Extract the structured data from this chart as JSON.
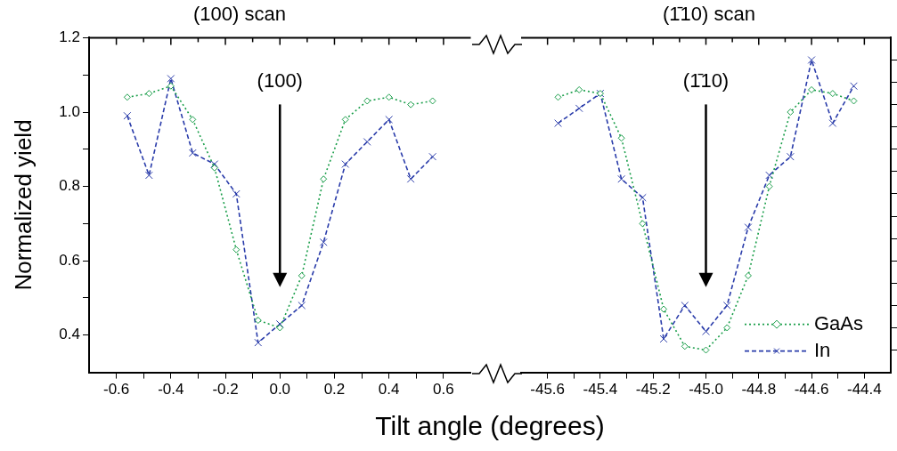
{
  "chart_data": [
    {
      "type": "line",
      "title": "(100) scan",
      "xlabel": "Tilt angle (degrees)",
      "ylabel": "Normalized yield",
      "x": [
        -0.56,
        -0.48,
        -0.4,
        -0.32,
        -0.24,
        -0.16,
        -0.08,
        0,
        0.08,
        0.16,
        0.24,
        0.32,
        0.4,
        0.48,
        0.56
      ],
      "xlim": [
        -0.7,
        0.7
      ],
      "xticks": [
        -0.6,
        {
          "value": -0.5,
          "label": null
        },
        -0.4,
        {
          "value": -0.3,
          "label": null
        },
        -0.2,
        {
          "value": -0.1,
          "label": null
        },
        {
          "value": 0,
          "label": "0.0"
        },
        {
          "value": 0.1,
          "label": null
        },
        0.2,
        {
          "value": 0.3,
          "label": null
        },
        0.4,
        {
          "value": 0.5,
          "label": null
        },
        0.6
      ],
      "ylim": [
        0.3,
        1.2
      ],
      "yticks": [
        0.4,
        {
          "value": 0.5,
          "label": null
        },
        0.6,
        {
          "value": 0.7,
          "label": null
        },
        0.8,
        {
          "value": 0.9,
          "label": null
        },
        {
          "value": 1.0,
          "label": "1.0"
        },
        {
          "value": 1.1,
          "label": null
        },
        1.2
      ],
      "grid": false,
      "annotations": [
        "(100)"
      ],
      "series": [
        {
          "color": "#1a9e4a",
          "marker": "diamond",
          "line_style": "dotted",
          "values": [
            1.04,
            1.05,
            1.07,
            0.98,
            0.85,
            0.63,
            0.44,
            0.42,
            0.56,
            0.82,
            0.98,
            1.03,
            1.04,
            1.02,
            1.03
          ]
        },
        {
          "color": "#2a3caa",
          "marker": "cross",
          "line_style": "dashed",
          "values": [
            0.99,
            0.83,
            1.09,
            0.89,
            0.86,
            0.78,
            0.38,
            0.43,
            0.48,
            0.65,
            0.86,
            0.92,
            0.98,
            0.82,
            0.88
          ]
        }
      ]
    },
    {
      "type": "line",
      "title": "(1̄10) scan",
      "x": [
        -45.56,
        -45.48,
        -45.4,
        -45.32,
        -45.24,
        -45.16,
        -45.08,
        -45.0,
        -44.92,
        -44.84,
        -44.76,
        -44.68,
        -44.6,
        -44.52,
        -44.44
      ],
      "xlim": [
        -45.7,
        -44.3
      ],
      "xticks": [
        -45.6,
        {
          "value": -45.5,
          "label": null
        },
        -45.4,
        {
          "value": -45.3,
          "label": null
        },
        -45.2,
        {
          "value": -45.1,
          "label": null
        },
        {
          "value": -45.0,
          "label": "-45.0"
        },
        {
          "value": -44.9,
          "label": null
        },
        -44.8,
        {
          "value": -44.7,
          "label": null
        },
        -44.6,
        {
          "value": -44.5,
          "label": null
        },
        -44.4
      ],
      "ylim": [
        0.3,
        1.2
      ],
      "yticks": [
        {
          "value": 0.36,
          "label": null
        },
        {
          "value": 0.42,
          "label": null
        },
        {
          "value": 0.48,
          "label": null
        },
        {
          "value": 0.54,
          "label": null
        },
        {
          "value": 0.6,
          "label": null
        },
        {
          "value": 0.66,
          "label": null
        },
        {
          "value": 0.72,
          "label": null
        },
        {
          "value": 0.78,
          "label": null
        },
        {
          "value": 0.84,
          "label": null
        },
        {
          "value": 0.9,
          "label": null
        },
        {
          "value": 0.96,
          "label": null
        },
        {
          "value": 1.02,
          "label": null
        },
        {
          "value": 1.08,
          "label": null
        },
        {
          "value": 1.14,
          "label": null
        }
      ],
      "tick_labels": "x",
      "grid": false,
      "legend": "bottom right",
      "annotations": [
        "(1̄10)"
      ],
      "series": [
        {
          "name": "GaAs",
          "color": "#1a9e4a",
          "marker": "diamond",
          "line_style": "dotted",
          "values": [
            1.04,
            1.06,
            1.05,
            0.93,
            0.7,
            0.47,
            0.37,
            0.36,
            0.42,
            0.56,
            0.8,
            1.0,
            1.06,
            1.05,
            1.03
          ]
        },
        {
          "name": "In",
          "color": "#2a3caa",
          "marker": "cross",
          "line_style": "dashed",
          "values": [
            0.97,
            1.01,
            1.05,
            0.82,
            0.77,
            0.39,
            0.48,
            0.41,
            0.48,
            0.69,
            0.83,
            0.88,
            1.14,
            0.97,
            1.07
          ]
        }
      ]
    }
  ]
}
